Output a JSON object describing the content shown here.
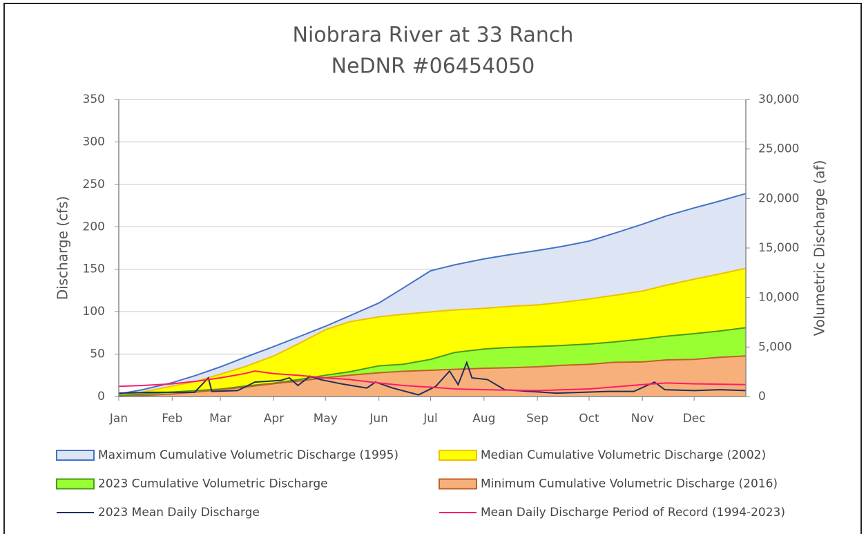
{
  "chart_data": {
    "type": "area",
    "title": [
      "Niobrara River at 33 Ranch",
      "NeDNR #06454050"
    ],
    "y_label": "Discharge (cfs)",
    "y2_label": "Volumetric Discharge (af)",
    "xlim": [
      1,
      365
    ],
    "xticks": [
      {
        "value": 1,
        "label": "Jan"
      },
      {
        "value": 32,
        "label": "Feb"
      },
      {
        "value": 60,
        "label": "Mar"
      },
      {
        "value": 91,
        "label": "Apr"
      },
      {
        "value": 121,
        "label": "May"
      },
      {
        "value": 152,
        "label": "Jun"
      },
      {
        "value": 182,
        "label": "Jul"
      },
      {
        "value": 213,
        "label": "Aug"
      },
      {
        "value": 244,
        "label": "Sep"
      },
      {
        "value": 274,
        "label": "Oct"
      },
      {
        "value": 305,
        "label": "Nov"
      },
      {
        "value": 335,
        "label": "Dec"
      }
    ],
    "ylim": [
      0,
      350
    ],
    "yticks": [
      0,
      50,
      100,
      150,
      200,
      250,
      300,
      350
    ],
    "y2lim": [
      0,
      30000
    ],
    "y2ticks": [
      0,
      {
        "value": 5000,
        "label": "5,000"
      },
      {
        "value": 10000,
        "label": "10,000"
      },
      {
        "value": 15000,
        "label": "15,000"
      },
      {
        "value": 20000,
        "label": "20,000"
      },
      {
        "value": 25000,
        "label": "25,000"
      },
      {
        "value": 30000,
        "label": "30,000"
      }
    ],
    "grid": true,
    "legend": "bottom",
    "series": [
      {
        "name": "Maximum Cumulative Volumetric Discharge (1995)",
        "type": "area",
        "axis": "y2",
        "color": "#4472c4",
        "fill": "#dde4f3",
        "x": [
          1,
          15,
          32,
          46,
          60,
          74,
          91,
          105,
          121,
          135,
          152,
          166,
          182,
          196,
          213,
          227,
          244,
          258,
          274,
          288,
          305,
          319,
          335,
          349,
          365
        ],
        "values": [
          250,
          700,
          1400,
          2150,
          3000,
          3950,
          5050,
          6000,
          7100,
          8150,
          9450,
          10950,
          12700,
          13300,
          13900,
          14300,
          14750,
          15150,
          15700,
          16450,
          17400,
          18250,
          19050,
          19700,
          20500
        ]
      },
      {
        "name": "Median Cumulative Volumetric Discharge (2002)",
        "type": "area",
        "axis": "y2",
        "color": "#f0c000",
        "fill": "#ffff00",
        "x": [
          1,
          15,
          32,
          46,
          60,
          74,
          91,
          105,
          121,
          135,
          152,
          166,
          182,
          196,
          213,
          227,
          244,
          258,
          274,
          288,
          305,
          319,
          335,
          349,
          365
        ],
        "values": [
          100,
          450,
          1050,
          1550,
          2250,
          3000,
          4100,
          5300,
          6750,
          7550,
          8050,
          8300,
          8550,
          8750,
          8900,
          9100,
          9250,
          9500,
          9850,
          10200,
          10650,
          11250,
          11850,
          12350,
          12950
        ]
      },
      {
        "name": "2023 Cumulative Volumetric Discharge",
        "type": "area",
        "axis": "y2",
        "color": "#4a9a1a",
        "fill": "#99ff33",
        "x": [
          1,
          15,
          32,
          46,
          60,
          74,
          91,
          105,
          121,
          135,
          152,
          166,
          182,
          196,
          213,
          227,
          244,
          258,
          274,
          288,
          305,
          319,
          335,
          349,
          365
        ],
        "values": [
          100,
          250,
          450,
          600,
          750,
          1050,
          1350,
          1700,
          2150,
          2500,
          3100,
          3250,
          3750,
          4450,
          4800,
          4950,
          5050,
          5150,
          5300,
          5500,
          5800,
          6100,
          6350,
          6600,
          6950
        ]
      },
      {
        "name": "Minimum Cumulative Volumetric Discharge (2016)",
        "type": "area",
        "axis": "y2",
        "color": "#c0602a",
        "fill": "#f8b07a",
        "x": [
          1,
          15,
          32,
          46,
          60,
          74,
          91,
          105,
          121,
          135,
          152,
          166,
          182,
          196,
          213,
          227,
          244,
          258,
          274,
          288,
          305,
          319,
          335,
          349,
          365
        ],
        "values": [
          0,
          100,
          250,
          450,
          700,
          950,
          1300,
          1550,
          1900,
          2150,
          2400,
          2550,
          2650,
          2750,
          2850,
          2900,
          3000,
          3150,
          3250,
          3450,
          3500,
          3700,
          3750,
          3950,
          4100
        ]
      },
      {
        "name": "2023 Mean Daily Discharge",
        "type": "line",
        "color": "#1f2f5f",
        "x": [
          1,
          20,
          45,
          53,
          55,
          70,
          80,
          95,
          100,
          105,
          112,
          118,
          130,
          145,
          150,
          160,
          175,
          185,
          193,
          198,
          203,
          206,
          215,
          225,
          240,
          255,
          270,
          285,
          300,
          312,
          318,
          335,
          350,
          365
        ],
        "values": [
          4,
          5,
          5,
          22,
          6,
          7,
          17,
          19,
          22,
          13,
          24,
          20,
          15,
          10,
          17,
          10,
          2,
          12,
          30,
          14,
          40,
          22,
          20,
          8,
          6,
          4,
          5,
          6,
          6,
          17,
          8,
          7,
          8,
          7
        ]
      },
      {
        "name": "Mean Daily Discharge Period of Record (1994-2023)",
        "type": "line",
        "color": "#ff1a6e",
        "x": [
          1,
          15,
          32,
          46,
          60,
          74,
          80,
          91,
          105,
          121,
          135,
          152,
          166,
          182,
          196,
          213,
          244,
          274,
          305,
          319,
          335,
          365
        ],
        "values": [
          12,
          13,
          15,
          18,
          22,
          27,
          30,
          27,
          25,
          22,
          20,
          16,
          13,
          11,
          9,
          8,
          7,
          9,
          14,
          16,
          15,
          14
        ]
      }
    ]
  }
}
